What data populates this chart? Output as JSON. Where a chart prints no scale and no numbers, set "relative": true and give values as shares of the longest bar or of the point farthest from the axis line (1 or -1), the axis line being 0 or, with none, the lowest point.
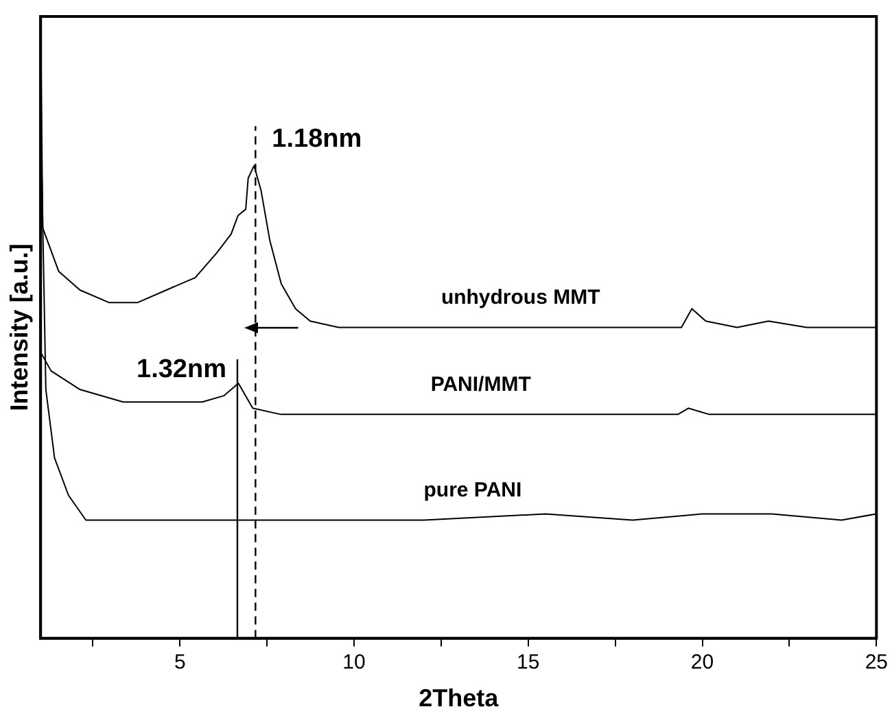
{
  "chart_data": {
    "type": "line",
    "xlabel": "2Theta",
    "ylabel": "Intensity [a.u.]",
    "relative": true,
    "xlim": [
      1,
      25
    ],
    "xticks": [
      {
        "value": 2.5,
        "label": null
      },
      5,
      {
        "value": 7.5,
        "label": null
      },
      10,
      {
        "value": 12.5,
        "label": null
      },
      15,
      {
        "value": 17.5,
        "label": null
      },
      20,
      {
        "value": 22.5,
        "label": null
      },
      25
    ],
    "tick_labels": "x",
    "grid": false,
    "legend": false,
    "marker": "none",
    "line_style": "solid",
    "series": [
      {
        "name": "unhydrous MMT",
        "color": "#000000",
        "x": [
          1.0,
          1.06,
          1.52,
          2.13,
          2.96,
          3.79,
          4.61,
          5.44,
          6.06,
          6.47,
          6.67,
          6.89,
          6.96,
          7.13,
          7.33,
          7.58,
          7.91,
          8.32,
          8.74,
          9.56,
          12,
          14,
          16,
          19.4,
          19.7,
          20.1,
          21,
          21.9,
          23,
          25
        ],
        "values": [
          1,
          0.66,
          0.59,
          0.56,
          0.54,
          0.54,
          0.56,
          0.58,
          0.62,
          0.65,
          0.68,
          0.69,
          0.74,
          0.76,
          0.72,
          0.64,
          0.57,
          0.53,
          0.51,
          0.5,
          0.5,
          0.5,
          0.5,
          0.5,
          0.53,
          0.51,
          0.5,
          0.51,
          0.5,
          0.5
        ]
      },
      {
        "name": "PANI/MMT",
        "color": "#000000",
        "x": [
          1.0,
          1.3,
          2.13,
          3.37,
          4.61,
          5.64,
          6.26,
          6.68,
          7.09,
          7.9,
          10,
          14,
          19.3,
          19.6,
          20.2,
          25
        ],
        "values": [
          0.46,
          0.43,
          0.4,
          0.38,
          0.38,
          0.38,
          0.39,
          0.41,
          0.37,
          0.36,
          0.36,
          0.36,
          0.36,
          0.37,
          0.36,
          0.36
        ]
      },
      {
        "name": "pure PANI",
        "color": "#000000",
        "x": [
          1.0,
          1.15,
          1.4,
          1.8,
          2.3,
          3,
          8,
          12,
          15.5,
          18,
          20,
          22,
          24,
          25
        ],
        "values": [
          0.85,
          0.4,
          0.29,
          0.23,
          0.19,
          0.19,
          0.19,
          0.19,
          0.2,
          0.19,
          0.2,
          0.2,
          0.19,
          0.2
        ]
      }
    ],
    "ref_lines": [
      {
        "axis": "x",
        "value": 7.17,
        "label": "1.18nm",
        "line_style": "dashed",
        "color": "#000000"
      },
      {
        "axis": "x",
        "value": 6.65,
        "label": "1.32nm",
        "line_style": "solid",
        "color": "#000000"
      }
    ]
  }
}
